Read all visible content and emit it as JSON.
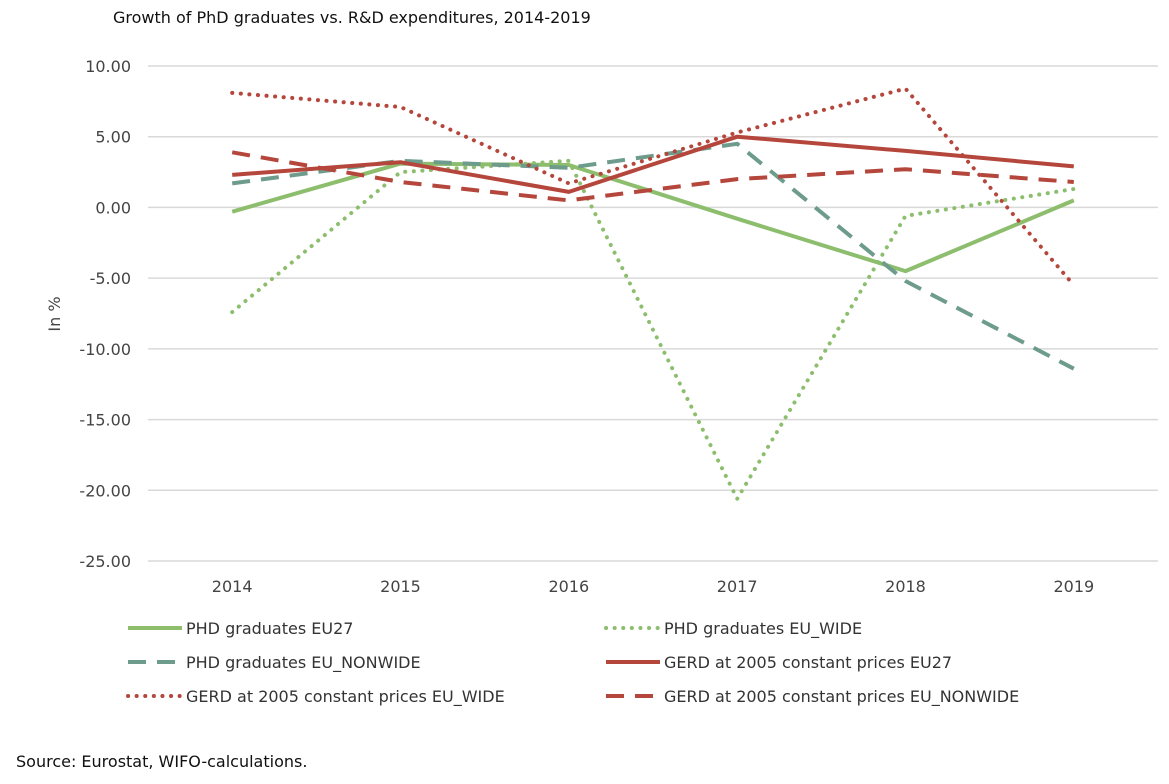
{
  "chart_data": {
    "type": "line",
    "title": "Growth of PhD graduates vs. R&D expenditures, 2014-2019",
    "ylabel": "In %",
    "xlabel": "",
    "categories": [
      "2014",
      "2015",
      "2016",
      "2017",
      "2018",
      "2019"
    ],
    "ylim": [
      -25,
      10
    ],
    "yticks": [
      10,
      5,
      0,
      -5,
      -10,
      -15,
      -20,
      -25
    ],
    "ytick_labels": [
      "10.00",
      "5.00",
      "0.00",
      "-5.00",
      "-10.00",
      "-15.00",
      "-20.00",
      "-25.00"
    ],
    "grid": "horizontal",
    "legend_position": "bottom",
    "series": [
      {
        "name": "PHD graduates EU27",
        "values": [
          -0.3,
          3.1,
          3.0,
          -0.8,
          -4.5,
          0.5
        ],
        "color": "#8DBE6E",
        "style": "solid"
      },
      {
        "name": "PHD graduates EU_WIDE",
        "values": [
          -7.4,
          2.5,
          3.3,
          -20.6,
          -0.6,
          1.3
        ],
        "color": "#8DBE6E",
        "style": "dotted"
      },
      {
        "name": "PHD graduates EU_NONWIDE",
        "values": [
          1.7,
          3.3,
          2.8,
          4.5,
          -5.2,
          -11.4
        ],
        "color": "#6E9C8C",
        "style": "dashed"
      },
      {
        "name": "GERD at 2005 constant prices EU27",
        "values": [
          2.3,
          3.2,
          1.1,
          5.0,
          4.0,
          2.9
        ],
        "color": "#B5463C",
        "style": "solid"
      },
      {
        "name": "GERD at 2005 constant prices EU_WIDE",
        "values": [
          8.1,
          7.1,
          1.7,
          5.3,
          8.4,
          -5.5
        ],
        "color": "#B5463C",
        "style": "dotted"
      },
      {
        "name": "GERD at 2005 constant prices EU_NONWIDE",
        "values": [
          3.9,
          1.8,
          0.5,
          2.0,
          2.7,
          1.8
        ],
        "color": "#B5463C",
        "style": "dashed"
      }
    ]
  },
  "source_note": "Source: Eurostat, WIFO-calculations."
}
